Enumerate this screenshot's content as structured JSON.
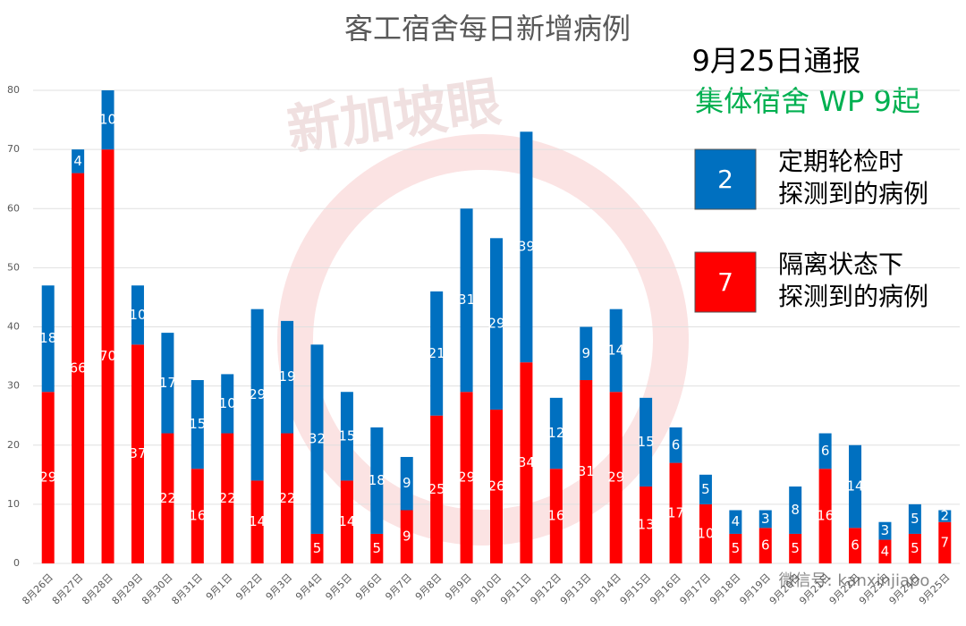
{
  "chart_data": {
    "type": "bar",
    "stacked": true,
    "title": "客工宿舍每日新增病例",
    "annotations": [
      "9月25日通报",
      "集体宿舍 WP 9起"
    ],
    "watermarks": [
      "新加坡眼",
      "微信号: kanxinjiapo"
    ],
    "categories": [
      "8月26日",
      "8月27日",
      "8月28日",
      "8月29日",
      "8月30日",
      "8月31日",
      "9月1日",
      "9月2日",
      "9月3日",
      "9月4日",
      "9月5日",
      "9月6日",
      "9月7日",
      "9月8日",
      "9月9日",
      "9月10日",
      "9月11日",
      "9月12日",
      "9月13日",
      "9月14日",
      "9月15日",
      "9月16日",
      "9月17日",
      "9月18日",
      "9月19日",
      "9月20日",
      "9月21日",
      "9月22日",
      "9月23日",
      "9月24日",
      "9月25日"
    ],
    "series": [
      {
        "name": "隔离状态下\n探测到的病例",
        "color": "#ff0000",
        "count": 7,
        "values": [
          29,
          66,
          70,
          37,
          22,
          16,
          22,
          14,
          22,
          5,
          14,
          5,
          9,
          25,
          29,
          26,
          34,
          16,
          31,
          29,
          13,
          17,
          10,
          5,
          6,
          5,
          16,
          6,
          4,
          5,
          7
        ]
      },
      {
        "name": "定期轮检时\n探测到的病例",
        "color": "#0070c0",
        "count": 2,
        "values": [
          18,
          4,
          10,
          10,
          17,
          15,
          10,
          29,
          19,
          32,
          15,
          18,
          9,
          21,
          31,
          29,
          39,
          12,
          9,
          14,
          15,
          6,
          5,
          4,
          3,
          8,
          6,
          14,
          3,
          5,
          2
        ]
      }
    ],
    "ylim": [
      0,
      80
    ],
    "yticks": [
      0,
      10,
      20,
      30,
      40,
      50,
      60,
      70,
      80
    ],
    "grid": true
  }
}
